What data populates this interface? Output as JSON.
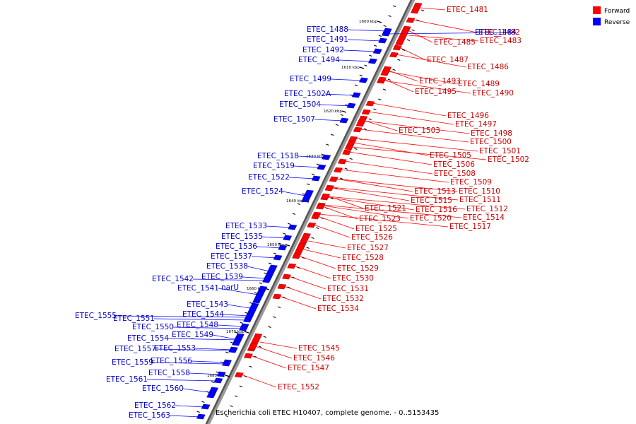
{
  "caption": "Escherichia coli ETEC H10407, complete genome. - 0..5153435",
  "legend": [
    {
      "label": "Forward",
      "color": "#ff0000"
    },
    {
      "label": "Reverse",
      "color": "#0000ff"
    }
  ],
  "ticks": [
    "1600 kbp",
    "1610 kbp",
    "1620 kbp",
    "1630 kbp",
    "1640 kbp",
    "1650 kbp",
    "1660 kbp",
    "1670 kbp",
    "1680 kbp"
  ],
  "forward_genes": [
    "ETEC_1481",
    "ETEC_1482",
    "ETEC_1483",
    "ETEC_1485",
    "ETEC_1486",
    "ETEC_1487",
    "ETEC_1489",
    "ETEC_1490",
    "ETEC_1493",
    "ETEC_1495",
    "ETEC_1496",
    "ETEC_1497",
    "ETEC_1498",
    "ETEC_1500",
    "ETEC_1501",
    "ETEC_1502",
    "ETEC_1503",
    "ETEC_1505",
    "ETEC_1506",
    "ETEC_1508",
    "ETEC_1509",
    "ETEC_1510",
    "ETEC_1511",
    "ETEC_1512",
    "ETEC_1513",
    "ETEC_1514",
    "ETEC_1515",
    "ETEC_1516",
    "ETEC_1517",
    "ETEC_1520",
    "ETEC_1521",
    "ETEC_1523",
    "ETEC_1525",
    "ETEC_1526",
    "ETEC_1527",
    "ETEC_1528",
    "ETEC_1529",
    "ETEC_1530",
    "ETEC_1531",
    "ETEC_1532",
    "ETEC_1534",
    "ETEC_1545",
    "ETEC_1546",
    "ETEC_1547",
    "ETEC_1552"
  ],
  "reverse_genes": [
    "ETEC_1484",
    "ETEC_1488",
    "ETEC_1491",
    "ETEC_1492",
    "ETEC_1494",
    "ETEC_1499",
    "ETEC_1502A",
    "ETEC_1504",
    "ETEC_1507",
    "ETEC_1518",
    "ETEC_1519",
    "ETEC_1522",
    "ETEC_1524",
    "ETEC_1533",
    "ETEC_1535",
    "ETEC_1536",
    "ETEC_1537",
    "ETEC_1538",
    "ETEC_1539",
    "ETEC_1541",
    "narU",
    "ETEC_1542",
    "ETEC_1543",
    "ETEC_1544",
    "ETEC_1548",
    "ETEC_1549",
    "ETEC_1550",
    "ETEC_1551",
    "ETEC_1553",
    "ETEC_1554",
    "ETEC_1555",
    "ETEC_1556",
    "ETEC_1557",
    "ETEC_1558",
    "ETEC_1559",
    "ETEC_1560",
    "ETEC_1561",
    "ETEC_1562",
    "ETEC_1563"
  ]
}
